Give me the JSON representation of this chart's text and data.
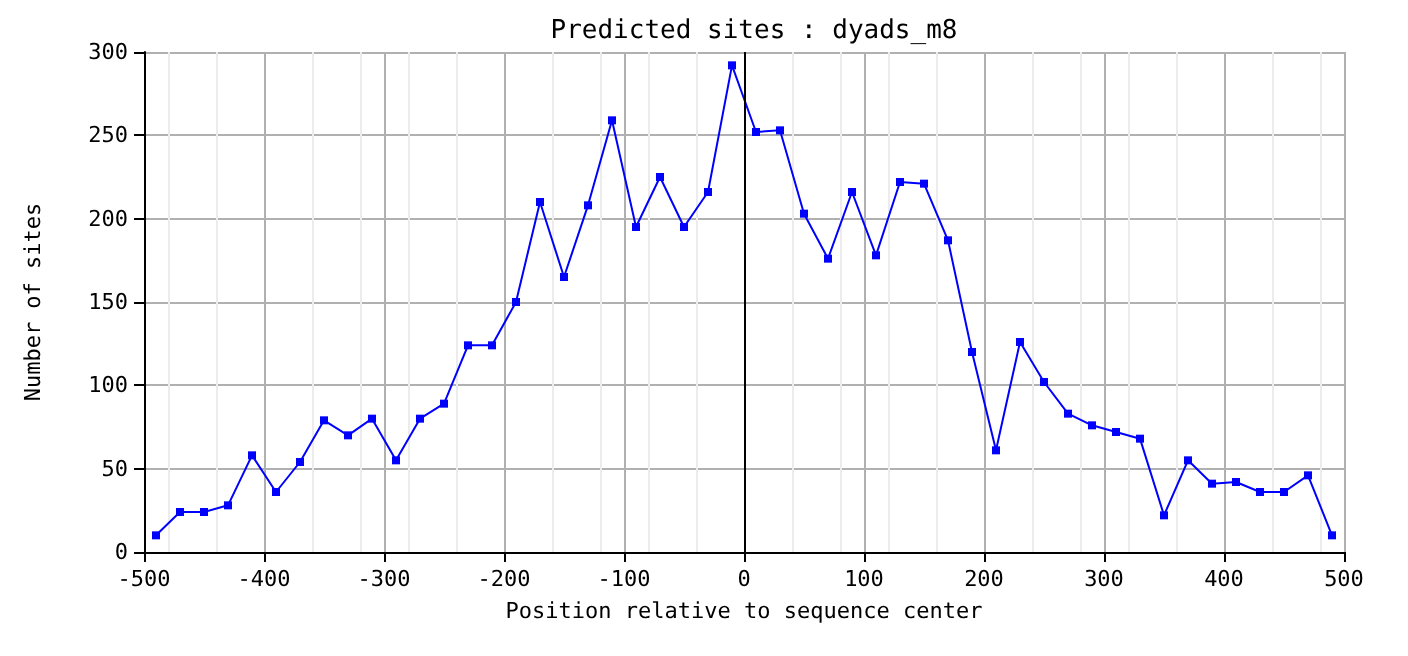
{
  "chart_data": {
    "type": "line",
    "title": "Predicted sites : dyads_m8",
    "xlabel": "Position relative to sequence center",
    "ylabel": "Number of sites",
    "x": [
      -490,
      -470,
      -450,
      -430,
      -410,
      -390,
      -370,
      -350,
      -330,
      -310,
      -290,
      -270,
      -250,
      -230,
      -210,
      -190,
      -170,
      -150,
      -130,
      -110,
      -90,
      -70,
      -50,
      -30,
      -10,
      10,
      30,
      50,
      70,
      90,
      110,
      130,
      150,
      170,
      190,
      210,
      230,
      250,
      270,
      290,
      310,
      330,
      350,
      370,
      390,
      410,
      430,
      450,
      470,
      490
    ],
    "series": [
      {
        "color": "#0000ff",
        "values": [
          10,
          24,
          24,
          28,
          58,
          36,
          54,
          79,
          70,
          80,
          55,
          80,
          89,
          124,
          124,
          150,
          210,
          165,
          208,
          259,
          195,
          225,
          195,
          216,
          292,
          252,
          253,
          203,
          176,
          216,
          178,
          222,
          221,
          187,
          120,
          61,
          126,
          102,
          83,
          76,
          72,
          68,
          22,
          55,
          41,
          42,
          36,
          36,
          46,
          10
        ]
      }
    ],
    "xlim": [
      -500,
      500
    ],
    "xticks": [
      -500,
      -400,
      -300,
      -200,
      -100,
      0,
      100,
      200,
      300,
      400,
      500
    ],
    "ylim": [
      0,
      300
    ],
    "yticks": [
      0,
      50,
      100,
      150,
      200,
      250,
      300
    ],
    "ref_lines": [
      {
        "axis": "x",
        "value": 0,
        "color": "#000000"
      }
    ],
    "grid": true,
    "marker": "square",
    "line_style": "solid"
  }
}
